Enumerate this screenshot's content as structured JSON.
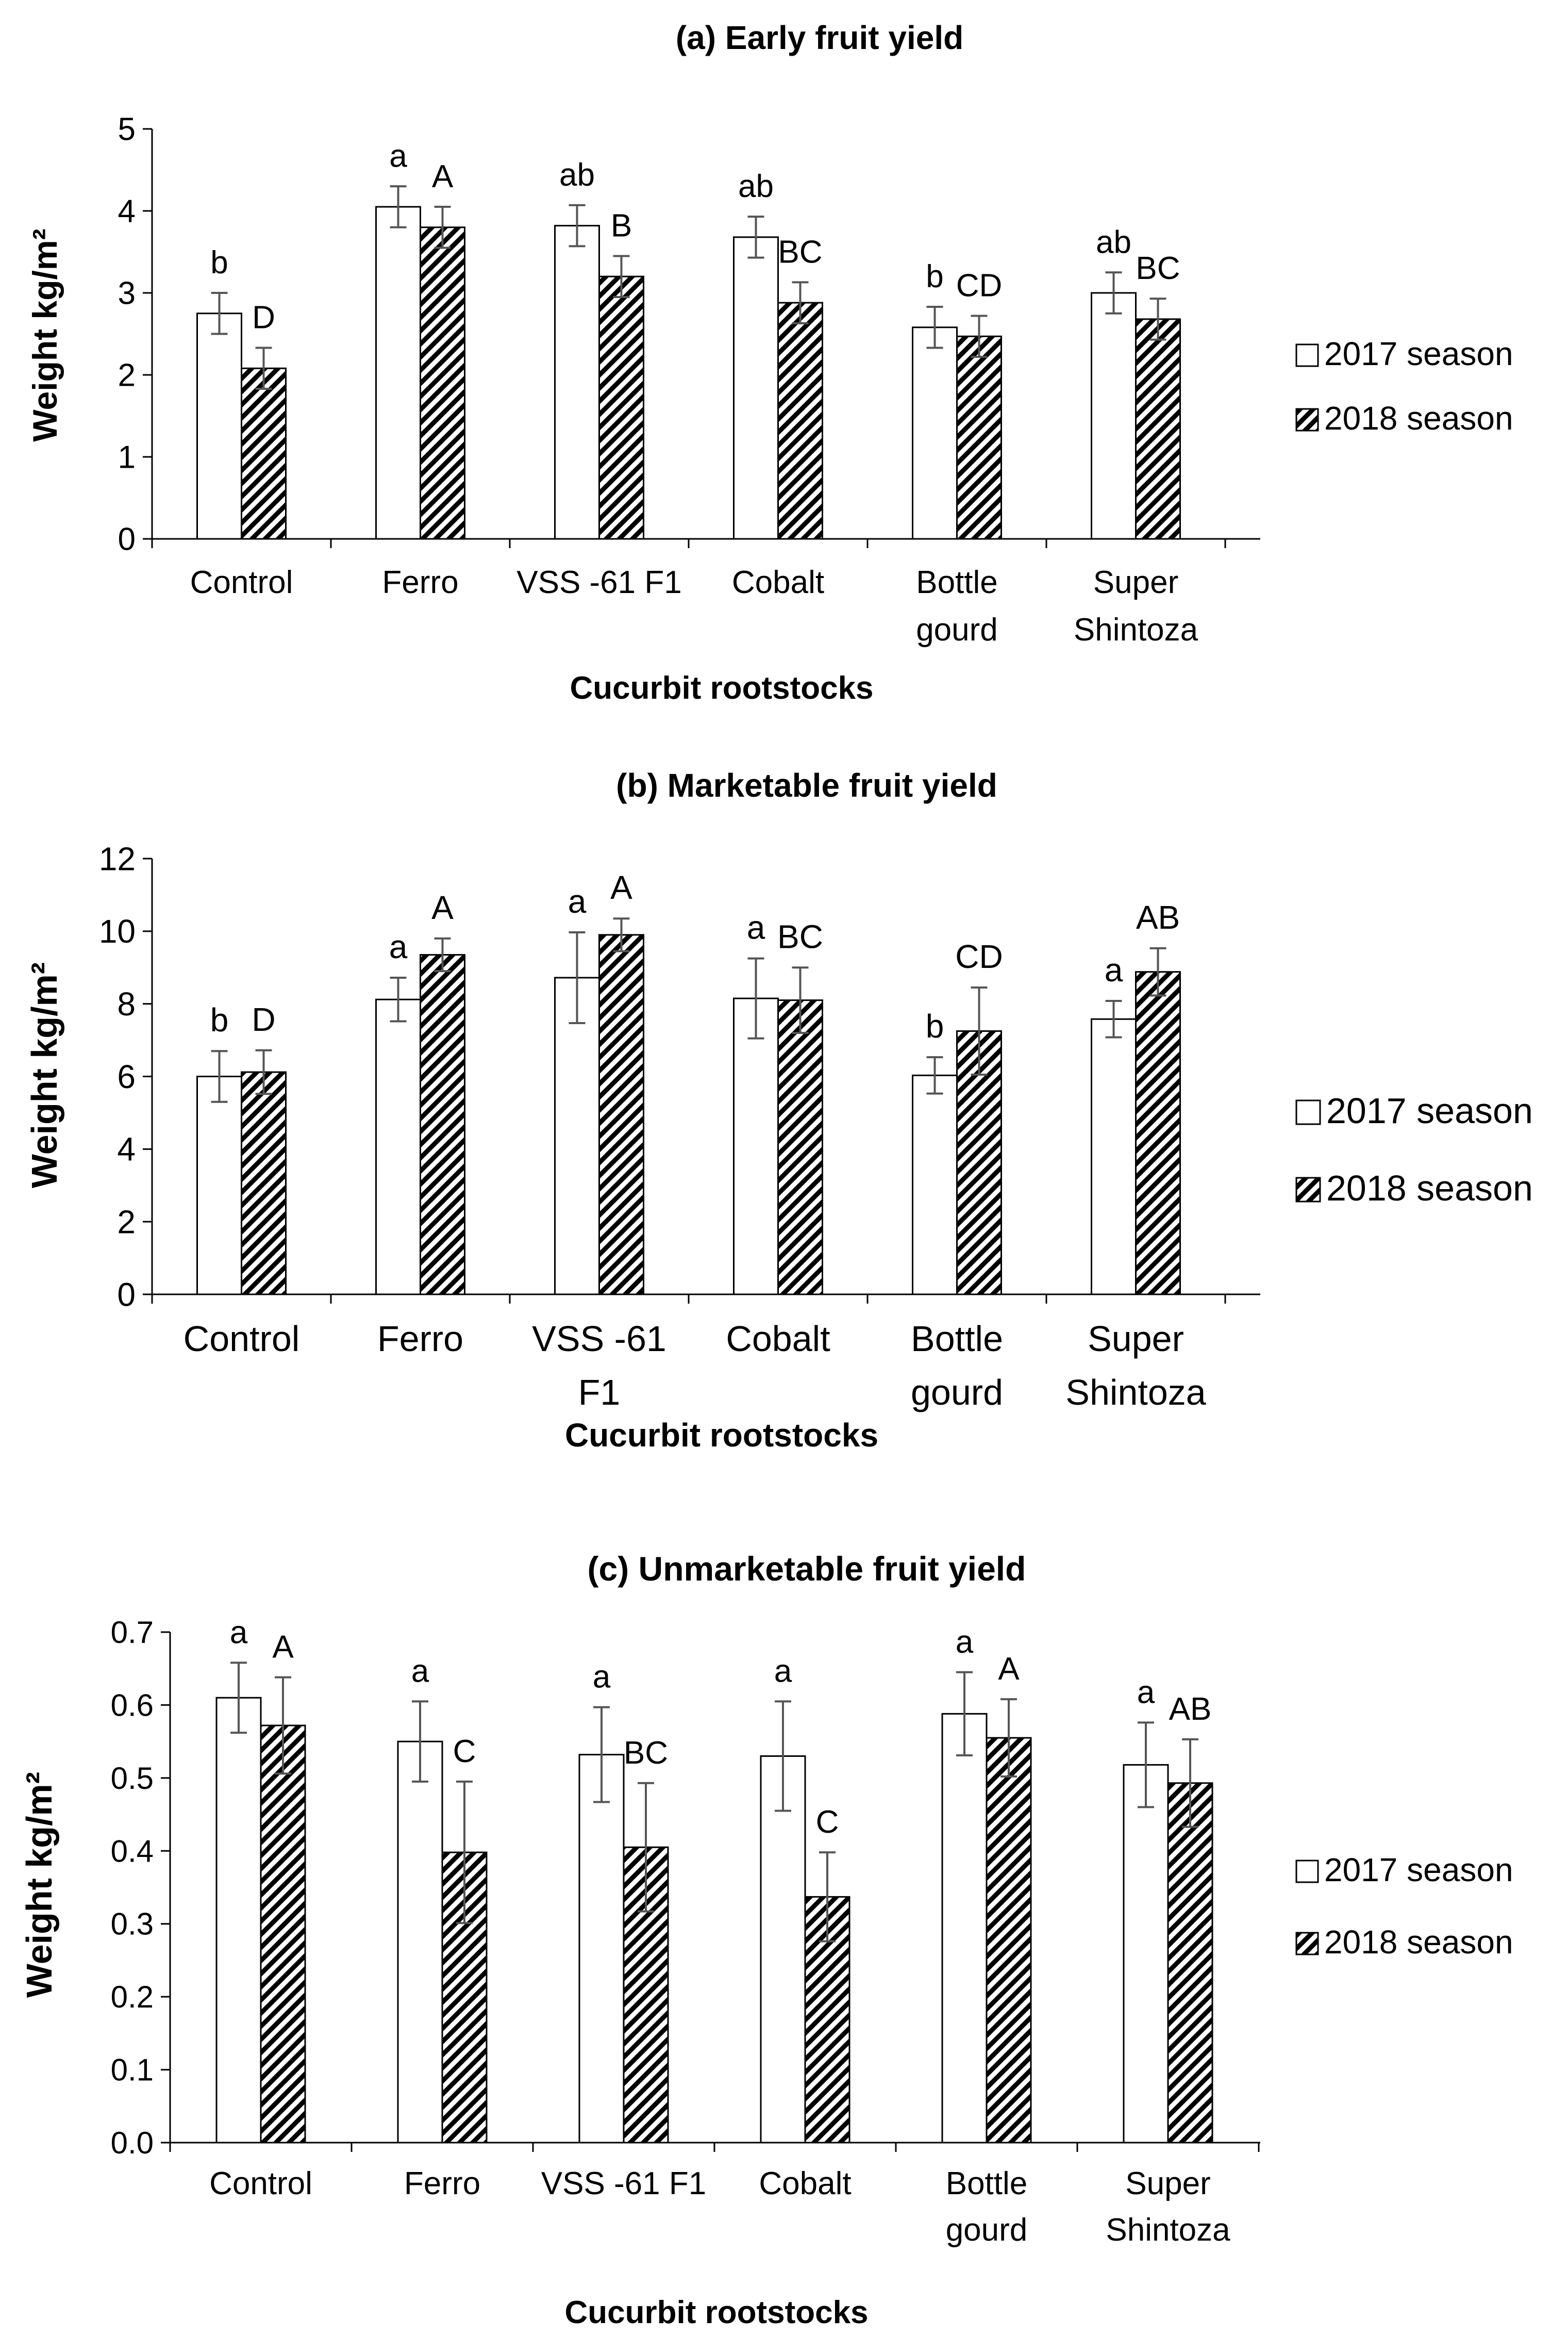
{
  "chart_data": [
    {
      "type": "bar",
      "title": "(a) Early fruit yield",
      "xlabel": "Cucurbit rootstocks",
      "ylabel": "Weight kg/m²",
      "ylim": [
        0,
        5
      ],
      "yticks": [
        "0",
        "1",
        "2",
        "3",
        "4",
        "5"
      ],
      "categories": [
        "Control",
        "Ferro",
        "VSS -61 F1",
        "Cobalt",
        "Bottle gourd",
        "Super Shintoza"
      ],
      "category_lines": [
        [
          "Control"
        ],
        [
          "Ferro"
        ],
        [
          "VSS -61 F1"
        ],
        [
          "Cobalt"
        ],
        [
          "Bottle",
          "gourd"
        ],
        [
          "Super",
          "Shintoza"
        ]
      ],
      "legend_position": "right",
      "series": [
        {
          "name": "2017 season",
          "pattern": "white",
          "values": [
            2.75,
            4.05,
            3.82,
            3.68,
            2.58,
            3.0
          ],
          "errors": [
            0.25,
            0.25,
            0.25,
            0.25,
            0.25,
            0.25
          ],
          "letters": [
            "b",
            "a",
            "ab",
            "ab",
            "b",
            "ab"
          ]
        },
        {
          "name": "2018 season",
          "pattern": "hatched",
          "values": [
            2.08,
            3.8,
            3.2,
            2.88,
            2.47,
            2.68
          ],
          "errors": [
            0.25,
            0.25,
            0.25,
            0.25,
            0.25,
            0.25
          ],
          "letters": [
            "D",
            "A",
            "B",
            "BC",
            "CD",
            "BC"
          ]
        }
      ]
    },
    {
      "type": "bar",
      "title": "(b) Marketable fruit yield",
      "xlabel": "Cucurbit rootstocks",
      "ylabel": "Weight kg/m²",
      "ylim": [
        0,
        12
      ],
      "yticks": [
        "0",
        "2",
        "4",
        "6",
        "8",
        "10",
        "12"
      ],
      "categories": [
        "Control",
        "Ferro",
        "VSS -61 F1",
        "Cobalt",
        "Bottle gourd",
        "Super Shintoza"
      ],
      "category_lines": [
        [
          "Control"
        ],
        [
          "Ferro"
        ],
        [
          "VSS -61",
          "F1"
        ],
        [
          "Cobalt"
        ],
        [
          "Bottle",
          "gourd"
        ],
        [
          "Super",
          "Shintoza"
        ]
      ],
      "legend_position": "right",
      "series": [
        {
          "name": "2017 season",
          "pattern": "white",
          "values": [
            6.0,
            8.12,
            8.72,
            8.15,
            6.03,
            7.58
          ],
          "errors": [
            0.7,
            0.6,
            1.25,
            1.1,
            0.5,
            0.5
          ],
          "letters": [
            "b",
            "a",
            "a",
            "a",
            "b",
            "a"
          ]
        },
        {
          "name": "2018 season",
          "pattern": "hatched",
          "values": [
            6.12,
            9.35,
            9.9,
            8.1,
            7.25,
            8.88
          ],
          "errors": [
            0.6,
            0.45,
            0.45,
            0.9,
            1.2,
            0.65
          ],
          "letters": [
            "D",
            "A",
            "A",
            "BC",
            "CD",
            "AB"
          ]
        }
      ]
    },
    {
      "type": "bar",
      "title": "(c) Unmarketable fruit yield",
      "xlabel": "Cucurbit rootstocks",
      "ylabel": "Weight kg/m²",
      "ylim": [
        0,
        0.7
      ],
      "yticks": [
        "0.0",
        "0.1",
        "0.2",
        "0.3",
        "0.4",
        "0.5",
        "0.6",
        "0.7"
      ],
      "categories": [
        "Control",
        "Ferro",
        "VSS -61 F1",
        "Cobalt",
        "Bottle gourd",
        "Super Shintoza"
      ],
      "category_lines": [
        [
          "Control"
        ],
        [
          "Ferro"
        ],
        [
          "VSS -61 F1"
        ],
        [
          "Cobalt"
        ],
        [
          "Bottle",
          "gourd"
        ],
        [
          "Super",
          "Shintoza"
        ]
      ],
      "legend_position": "right",
      "series": [
        {
          "name": "2017 season",
          "pattern": "white",
          "values": [
            0.61,
            0.55,
            0.532,
            0.53,
            0.588,
            0.518
          ],
          "errors": [
            0.048,
            0.055,
            0.065,
            0.075,
            0.057,
            0.058
          ],
          "letters": [
            "a",
            "a",
            "a",
            "a",
            "a",
            "a"
          ]
        },
        {
          "name": "2018 season",
          "pattern": "hatched",
          "values": [
            0.572,
            0.398,
            0.405,
            0.337,
            0.555,
            0.493
          ],
          "errors": [
            0.066,
            0.097,
            0.088,
            0.061,
            0.053,
            0.06
          ],
          "letters": [
            "A",
            "C",
            "BC",
            "C",
            "A",
            "AB"
          ]
        }
      ]
    }
  ]
}
